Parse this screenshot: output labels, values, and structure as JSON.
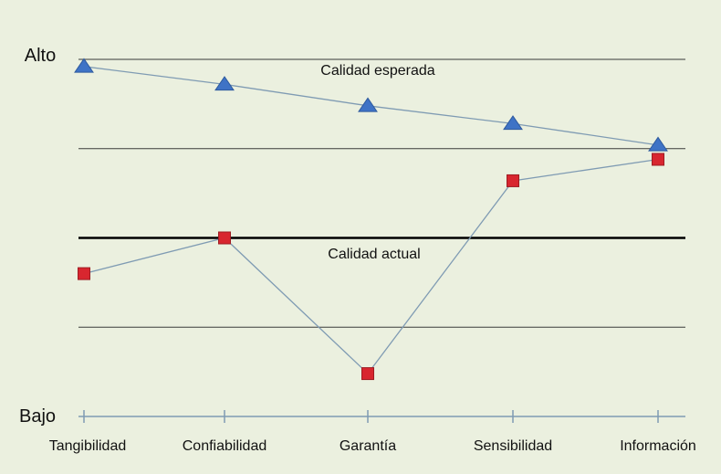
{
  "colors": {
    "background": "#EBF0DF",
    "gridline": "#3a3a3a",
    "reference_line": "#000000",
    "series_line": "#7F9BB3",
    "expected_marker": "#3F73C6",
    "expected_marker_edge": "#2E5A9E",
    "actual_marker": "#D8262F",
    "actual_marker_edge": "#9E1C22",
    "axis": "#7F9BB3"
  },
  "chart_data": {
    "type": "line",
    "title": "",
    "xlabel": "",
    "ylabel": "",
    "categories": [
      "Tangibilidad",
      "Confiabilidad",
      "Garantía",
      "Sensibilidad",
      "Información"
    ],
    "y_axis_labels": {
      "top": "Alto",
      "bottom": "Bajo"
    },
    "ylim": [
      0,
      100
    ],
    "gridlines": [
      100,
      75,
      50,
      25
    ],
    "reference_line": {
      "value": 50,
      "label": "Calidad actual"
    },
    "series": [
      {
        "name": "Calidad esperada",
        "marker": "triangle",
        "values": [
          98,
          93,
          87,
          82,
          76
        ]
      },
      {
        "name": "",
        "marker": "square",
        "values": [
          40,
          50,
          12,
          66,
          72
        ]
      }
    ],
    "annotations": [
      {
        "text": "Calidad esperada",
        "near": "top-center"
      }
    ],
    "grid": true,
    "legend": "none"
  }
}
